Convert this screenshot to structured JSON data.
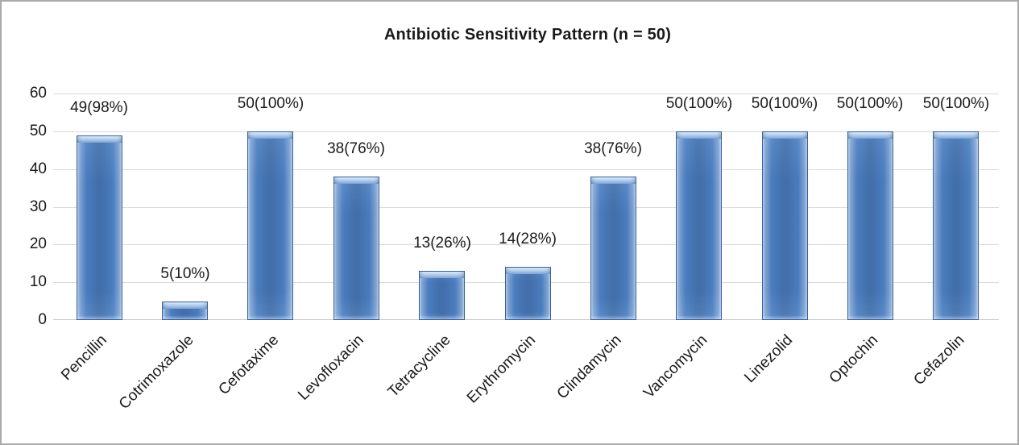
{
  "chart_data": {
    "type": "bar",
    "title": "Antibiotic Sensitivity Pattern (n = 50)",
    "categories": [
      "Pencillin",
      "Cotrimoxazole",
      "Cefotaxime",
      "Levofloxacin",
      "Tetracycline",
      "Erythromycin",
      "Clindamycin",
      "Vancomycin",
      "Linezolid",
      "Optochin",
      "Cefazolin"
    ],
    "values": [
      49,
      5,
      50,
      38,
      13,
      14,
      38,
      50,
      50,
      50,
      50
    ],
    "data_labels": [
      "49(98%)",
      "5(10%)",
      "50(100%)",
      "38(76%)",
      "13(26%)",
      "14(28%)",
      "38(76%)",
      "50(100%)",
      "50(100%)",
      "50(100%)",
      "50(100%)"
    ],
    "xlabel": "",
    "ylabel": "",
    "ylim": [
      0,
      60
    ],
    "yticks": [
      0,
      10,
      20,
      30,
      40,
      50,
      60
    ],
    "grid": "horizontal",
    "legend": "none",
    "bar_style": "3d-bevel"
  },
  "colors": {
    "bar_face": "#4A7CBE",
    "bar_face_light": "#5B8BC9",
    "bar_top_light": "#DDEBF8",
    "bar_outline": "#35619E",
    "gridline": "#D9D9D9",
    "axis_line": "#C9C9C9",
    "text": "#1A1A1A",
    "figure_border": "#A9A9A9",
    "background": "#FFFFFF"
  }
}
